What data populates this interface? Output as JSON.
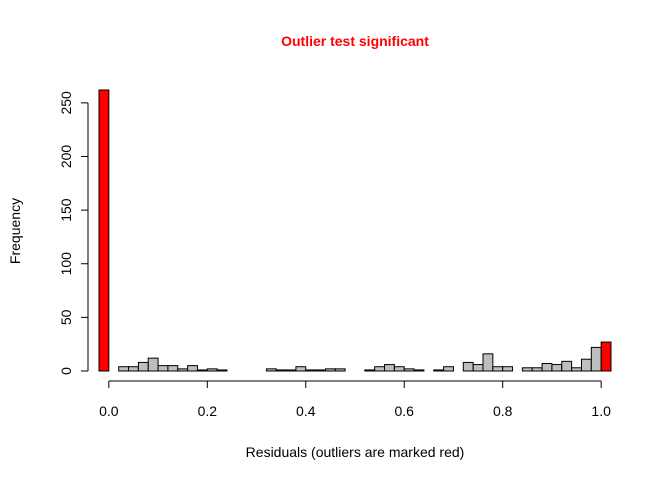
{
  "chart_data": {
    "type": "bar",
    "title": "Outlier test significant",
    "xlabel": "Residuals (outliers are marked red)",
    "ylabel": "Frequency",
    "xlim": [
      -0.02,
      1.02
    ],
    "ylim": [
      0,
      262
    ],
    "x_ticks": [
      0.0,
      0.2,
      0.4,
      0.6,
      0.8,
      1.0
    ],
    "x_tick_labels": [
      "0.0",
      "0.2",
      "0.4",
      "0.6",
      "0.8",
      "1.0"
    ],
    "y_ticks": [
      0,
      50,
      100,
      150,
      200,
      250
    ],
    "y_tick_labels": [
      "0",
      "50",
      "100",
      "150",
      "200",
      "250"
    ],
    "bin_width": 0.02,
    "bins_start": [
      -0.02,
      0.02,
      0.04,
      0.06,
      0.08,
      0.1,
      0.12,
      0.14,
      0.16,
      0.18,
      0.2,
      0.22,
      0.24,
      0.26,
      0.28,
      0.3,
      0.32,
      0.34,
      0.36,
      0.38,
      0.4,
      0.42,
      0.44,
      0.46,
      0.48,
      0.5,
      0.52,
      0.54,
      0.56,
      0.58,
      0.6,
      0.62,
      0.64,
      0.66,
      0.68,
      0.7,
      0.72,
      0.74,
      0.76,
      0.78,
      0.8,
      0.82,
      0.84,
      0.86,
      0.88,
      0.9,
      0.92,
      0.94,
      0.96,
      0.98,
      1.0
    ],
    "bins_end": [
      0.0,
      0.04,
      0.06,
      0.08,
      0.1,
      0.12,
      0.14,
      0.16,
      0.18,
      0.2,
      0.22,
      0.24,
      0.26,
      0.28,
      0.3,
      0.32,
      0.34,
      0.36,
      0.38,
      0.4,
      0.42,
      0.44,
      0.46,
      0.48,
      0.5,
      0.52,
      0.54,
      0.56,
      0.58,
      0.6,
      0.62,
      0.64,
      0.66,
      0.68,
      0.7,
      0.72,
      0.74,
      0.76,
      0.78,
      0.8,
      0.82,
      0.84,
      0.86,
      0.88,
      0.9,
      0.92,
      0.94,
      0.96,
      0.98,
      1.0,
      1.02
    ],
    "values": [
      262,
      4,
      4,
      8,
      12,
      5,
      5,
      2,
      5,
      1,
      2,
      1,
      0,
      0,
      0,
      0,
      2,
      1,
      1,
      4,
      1,
      1,
      2,
      2,
      0,
      0,
      1,
      4,
      6,
      4,
      2,
      1,
      0,
      1,
      4,
      0,
      8,
      6,
      16,
      4,
      4,
      0,
      3,
      3,
      7,
      6,
      9,
      3,
      11,
      22,
      27
    ],
    "outlier_flags": [
      true,
      false,
      false,
      false,
      false,
      false,
      false,
      false,
      false,
      false,
      false,
      false,
      false,
      false,
      false,
      false,
      false,
      false,
      false,
      false,
      false,
      false,
      false,
      false,
      false,
      false,
      false,
      false,
      false,
      false,
      false,
      false,
      false,
      false,
      false,
      false,
      false,
      false,
      false,
      false,
      false,
      false,
      false,
      false,
      false,
      false,
      false,
      false,
      false,
      false,
      true
    ],
    "colors": {
      "title": "#ff0000",
      "outlier_bar": "#ff0000",
      "normal_bar": "#bebebe",
      "stroke": "#000000"
    },
    "grid": false
  }
}
